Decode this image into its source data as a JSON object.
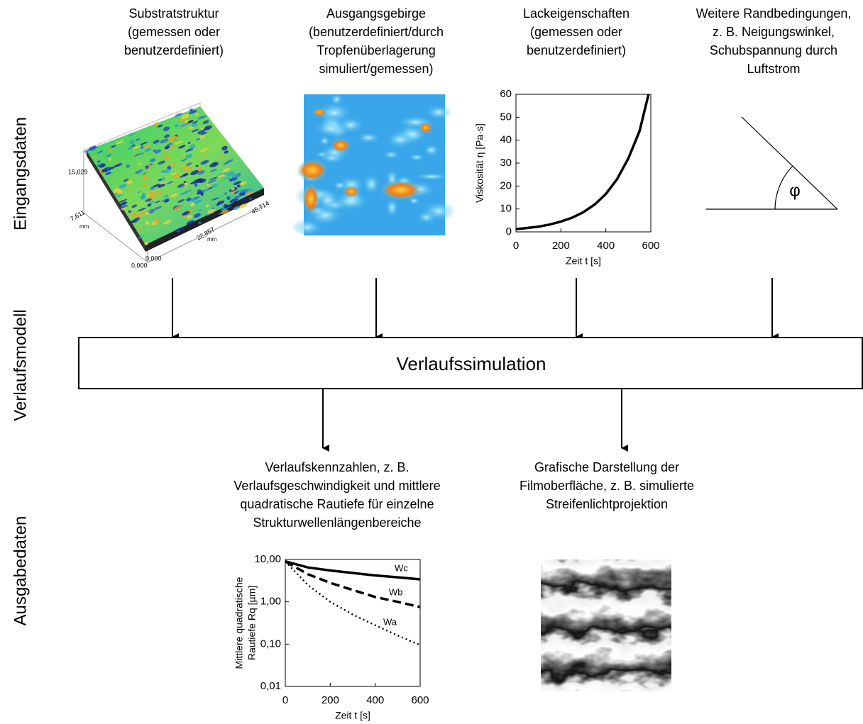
{
  "row_labels": [
    "Eingangsdaten",
    "Verlaufsmodell",
    "Ausgabedaten"
  ],
  "inputs": [
    {
      "lines": [
        "Substratstruktur",
        "(gemessen oder",
        "benutzerdefiniert)"
      ]
    },
    {
      "lines": [
        "Ausgangsgebirge",
        "(benutzerdefiniert/durch",
        "Tropfenüberlagerung",
        "simuliert/gemessen)"
      ]
    },
    {
      "lines": [
        "Lackeigenschaften",
        "(gemessen oder",
        "benutzerdefiniert)"
      ]
    },
    {
      "lines": [
        "Weitere Randbedingungen,",
        "z. B. Neigungswinkel,",
        "Schubspannung durch",
        "Luftstrom"
      ]
    }
  ],
  "substrate_plot": {
    "axis_labels": [
      "15,029",
      "7,611",
      "0,000",
      "0,000",
      "22,857",
      "45,714",
      "mm",
      "mm"
    ]
  },
  "viscosity_chart": {
    "type": "line",
    "x": [
      0,
      50,
      100,
      150,
      200,
      250,
      300,
      350,
      400,
      450,
      500,
      550,
      590
    ],
    "series": [
      {
        "color": "#000000",
        "style": "solid",
        "values": [
          1.2,
          1.7,
          2.3,
          3.2,
          4.5,
          6.2,
          8.6,
          11.9,
          16.5,
          23,
          32,
          44,
          60
        ]
      }
    ],
    "xlim": [
      0,
      600
    ],
    "ylim": [
      0,
      60
    ],
    "xticks": [
      0,
      200,
      400,
      600
    ],
    "yticks": [
      0,
      10,
      20,
      30,
      40,
      50,
      60
    ],
    "xlabel": "Zeit t [s]",
    "ylabel": [
      "Viskosität η [Pa·s]"
    ]
  },
  "angle_label": "φ",
  "model_box": "Verlaufssimulation",
  "outputs": [
    {
      "lines": [
        "Verlaufskennzahlen, z. B.",
        "Verlaufsgeschwindigkeit und mittlere",
        "quadratische Rautiefe für einzelne",
        "Strukturwellenlängenbereiche"
      ]
    },
    {
      "lines": [
        "Grafische Darstellung der",
        "Filmoberfläche, z. B. simulierte",
        "Streifenlichtprojektion"
      ]
    }
  ],
  "roughness_chart": {
    "type": "line",
    "log_scale": true,
    "x": [
      0,
      100,
      200,
      300,
      400,
      500,
      600
    ],
    "series": [
      {
        "name": "Wc",
        "color": "#000000",
        "style": "solid",
        "values": [
          9,
          6.5,
          5.5,
          4.8,
          4.2,
          3.8,
          3.4
        ]
      },
      {
        "name": "Wb",
        "color": "#000000",
        "style": "dashed",
        "values": [
          9,
          4.5,
          2.8,
          1.9,
          1.3,
          1.0,
          0.75
        ]
      },
      {
        "name": "Wa",
        "color": "#000000",
        "style": "dotted",
        "values": [
          9,
          2.5,
          1.0,
          0.5,
          0.28,
          0.16,
          0.095
        ]
      }
    ],
    "xlim": [
      0,
      600
    ],
    "ylim": [
      0.01,
      10
    ],
    "xticks": [
      0,
      200,
      400,
      600
    ],
    "yticks": [
      {
        "value": 0.01,
        "label": "0,01"
      },
      {
        "value": 0.1,
        "label": "0,10"
      },
      {
        "value": 1,
        "label": "1,00"
      },
      {
        "value": 10,
        "label": "10,00"
      }
    ],
    "xlabel": "Zeit t [s]",
    "ylabel": [
      "Mittlere quadratische",
      "Rautiefe Rq [µm]"
    ]
  }
}
